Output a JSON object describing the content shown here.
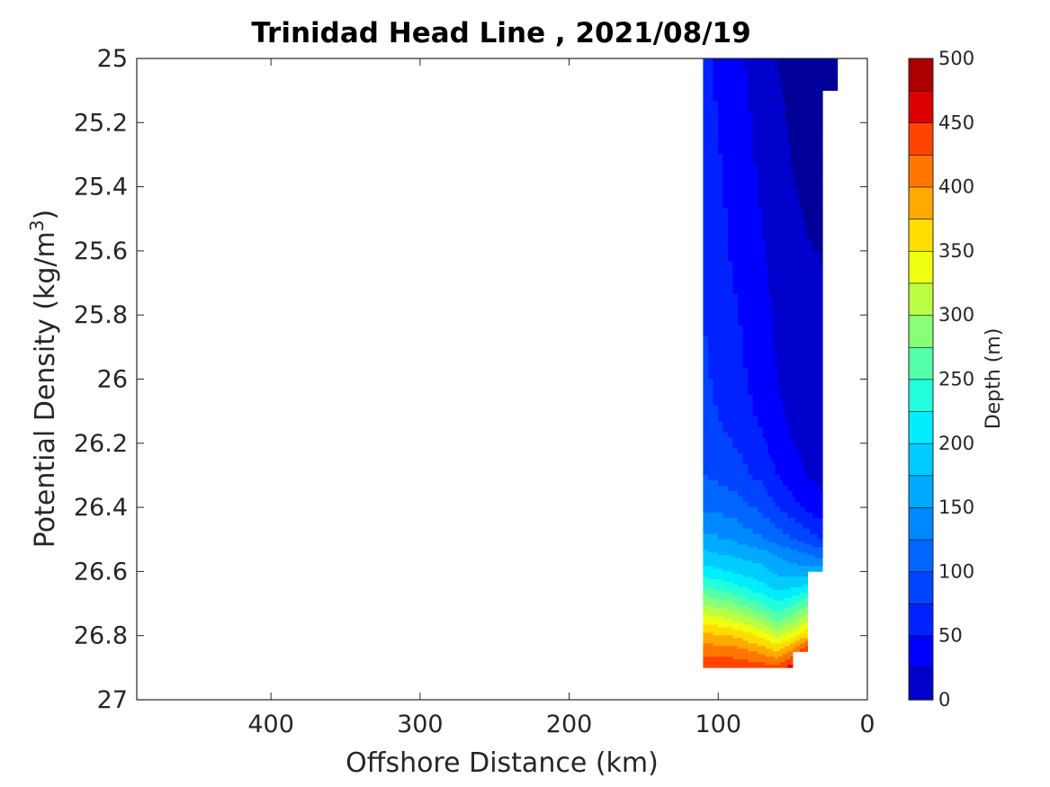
{
  "chart_data": {
    "type": "heatmap",
    "title": "Trinidad Head Line , 2021/08/19",
    "xlabel": "Offshore Distance (km)",
    "ylabel": "Potential Density (kg/m",
    "ylabel_sup": "3",
    "ylabel_close": ")",
    "xlim": [
      490,
      0
    ],
    "ylim": [
      25,
      27
    ],
    "x_ticks": [
      400,
      300,
      200,
      100,
      0
    ],
    "x_tick_labels": [
      "400",
      "300",
      "200",
      "100",
      "0"
    ],
    "y_ticks": [
      25,
      25.2,
      25.4,
      25.6,
      25.8,
      26,
      26.2,
      26.4,
      26.6,
      26.8,
      27
    ],
    "y_tick_labels": [
      "25",
      "25.2",
      "25.4",
      "25.6",
      "25.8",
      "26",
      "26.2",
      "26.4",
      "26.6",
      "26.8",
      "27"
    ],
    "colorbar": {
      "label": "Depth (m)",
      "min": 0,
      "max": 500,
      "ticks": [
        0,
        50,
        100,
        150,
        200,
        250,
        300,
        350,
        400,
        450,
        500
      ],
      "tick_labels": [
        "0",
        "50",
        "100",
        "150",
        "200",
        "250",
        "300",
        "350",
        "400",
        "450",
        "500"
      ],
      "colormap": "jet",
      "levels": 20,
      "colors": [
        "#000099",
        "#0000CC",
        "#0000FF",
        "#0022FF",
        "#0044FF",
        "#0066FF",
        "#0088FF",
        "#00AAFF",
        "#00CCFF",
        "#00EEFF",
        "#22FFDD",
        "#55FFAA",
        "#88FF77",
        "#BBFF44",
        "#EEFF11",
        "#FFDD00",
        "#FFAA00",
        "#FF7700",
        "#FF4400",
        "#DD0000",
        "#AA0000"
      ]
    },
    "stations_km": [
      110,
      90,
      70,
      60,
      50,
      40,
      30,
      20
    ],
    "density_levels": [
      25.0,
      25.1,
      25.2,
      25.4,
      25.6,
      25.8,
      26.0,
      26.1,
      26.2,
      26.3,
      26.4,
      26.5,
      26.55,
      26.6,
      26.65,
      26.7,
      26.75,
      26.8,
      26.85,
      26.9
    ],
    "depth_grid": [
      [
        70,
        45,
        25,
        12,
        8,
        6,
        5,
        5
      ],
      [
        72,
        47,
        27,
        14,
        9,
        7,
        6,
        6
      ],
      [
        74,
        50,
        30,
        16,
        10,
        8,
        7,
        null
      ],
      [
        78,
        55,
        34,
        20,
        13,
        10,
        9,
        null
      ],
      [
        82,
        60,
        40,
        25,
        17,
        13,
        12,
        null
      ],
      [
        87,
        66,
        46,
        31,
        23,
        18,
        16,
        null
      ],
      [
        93,
        72,
        52,
        37,
        28,
        23,
        20,
        null
      ],
      [
        96,
        77,
        56,
        41,
        32,
        26,
        23,
        null
      ],
      [
        102,
        88,
        66,
        49,
        38,
        30,
        27,
        null
      ],
      [
        112,
        100,
        80,
        62,
        48,
        36,
        30,
        null
      ],
      [
        135,
        125,
        105,
        88,
        72,
        56,
        44,
        null
      ],
      [
        170,
        160,
        140,
        125,
        115,
        100,
        88,
        null
      ],
      [
        195,
        185,
        175,
        160,
        150,
        140,
        130,
        null
      ],
      [
        225,
        210,
        195,
        180,
        175,
        170,
        175,
        null
      ],
      [
        265,
        245,
        220,
        205,
        210,
        220,
        null,
        null
      ],
      [
        310,
        290,
        260,
        240,
        255,
        280,
        null,
        null
      ],
      [
        350,
        335,
        305,
        280,
        300,
        330,
        null,
        null
      ],
      [
        395,
        385,
        355,
        330,
        350,
        380,
        null,
        null
      ],
      [
        430,
        425,
        405,
        385,
        420,
        470,
        null,
        null
      ],
      [
        455,
        455,
        450,
        445,
        480,
        null,
        null,
        null
      ]
    ]
  }
}
